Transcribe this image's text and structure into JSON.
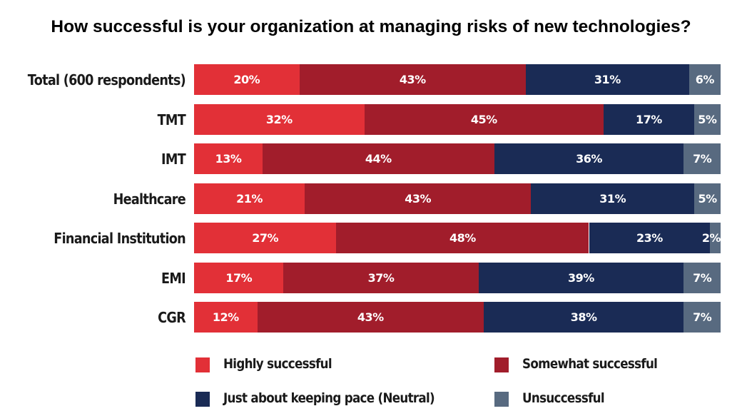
{
  "chart_data": {
    "type": "bar",
    "orientation": "horizontal",
    "stacked": true,
    "title": "How successful is your organization at managing risks of new technologies?",
    "xlabel": "",
    "ylabel": "",
    "xlim": [
      0,
      100
    ],
    "grid": false,
    "legend_position": "bottom",
    "categories": [
      "Total (600 respondents)",
      "TMT",
      "IMT",
      "Healthcare",
      "Financial Institution",
      "EMI",
      "CGR"
    ],
    "series": [
      {
        "name": "Highly successful",
        "color": "#e23037",
        "values": [
          20,
          32,
          13,
          21,
          27,
          17,
          12
        ]
      },
      {
        "name": "Somewhat successful",
        "color": "#a11d2b",
        "values": [
          43,
          45,
          44,
          43,
          48,
          37,
          43
        ]
      },
      {
        "name": "Just about keeping pace (Neutral)",
        "color": "#1a2b55",
        "values": [
          31,
          17,
          36,
          31,
          23,
          39,
          38
        ]
      },
      {
        "name": "Unsuccessful",
        "color": "#586a80",
        "values": [
          6,
          5,
          7,
          5,
          2,
          7,
          7
        ]
      }
    ],
    "value_suffix": "%"
  }
}
